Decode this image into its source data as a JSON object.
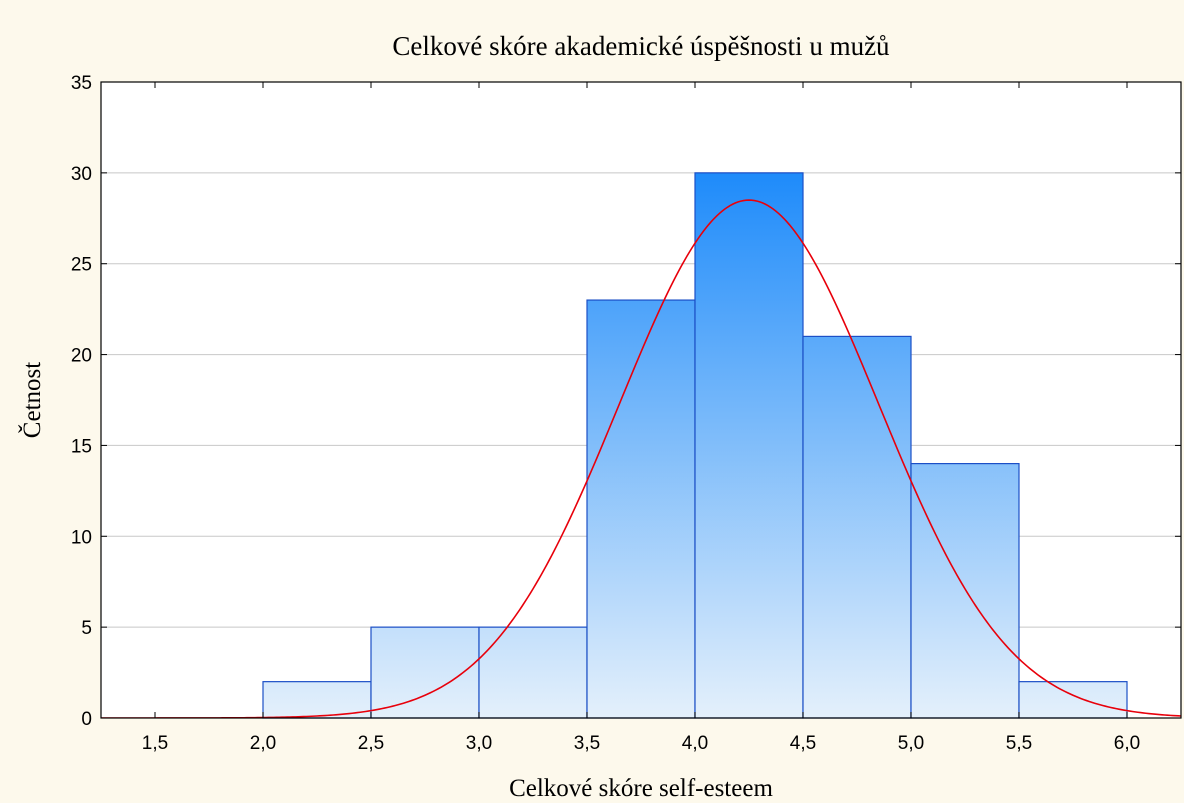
{
  "chart_data": {
    "type": "bar",
    "title": "Celkové skóre akademické úspěšnosti u mužů",
    "xlabel": "Celkové skóre self-esteem",
    "ylabel": "Četnost",
    "xlim": [
      1.25,
      6.25
    ],
    "ylim": [
      0,
      35
    ],
    "xticks": [
      1.5,
      2.0,
      2.5,
      3.0,
      3.5,
      4.0,
      4.5,
      5.0,
      5.5,
      6.0
    ],
    "xtick_labels": [
      "1,5",
      "2,0",
      "2,5",
      "3,0",
      "3,5",
      "4,0",
      "4,5",
      "5,0",
      "5,5",
      "6,0"
    ],
    "yticks": [
      0,
      5,
      10,
      15,
      20,
      25,
      30,
      35
    ],
    "ytick_labels": [
      "0",
      "5",
      "10",
      "15",
      "20",
      "25",
      "30",
      "35"
    ],
    "bins": [
      {
        "x0": 2.0,
        "x1": 2.5,
        "count": 2
      },
      {
        "x0": 2.5,
        "x1": 3.0,
        "count": 5
      },
      {
        "x0": 3.0,
        "x1": 3.5,
        "count": 5
      },
      {
        "x0": 3.5,
        "x1": 4.0,
        "count": 23
      },
      {
        "x0": 4.0,
        "x1": 4.5,
        "count": 30
      },
      {
        "x0": 4.5,
        "x1": 5.0,
        "count": 21
      },
      {
        "x0": 5.0,
        "x1": 5.5,
        "count": 14
      },
      {
        "x0": 5.5,
        "x1": 6.0,
        "count": 2
      }
    ],
    "normal_curve": {
      "mean": 4.25,
      "sd": 0.6,
      "peak": 28.5,
      "color": "#e8000b"
    },
    "grid": true,
    "bar_color_top": "#1e8bfa",
    "bar_color_bottom": "#e4f0fb",
    "bar_stroke": "#1c4fc6"
  }
}
